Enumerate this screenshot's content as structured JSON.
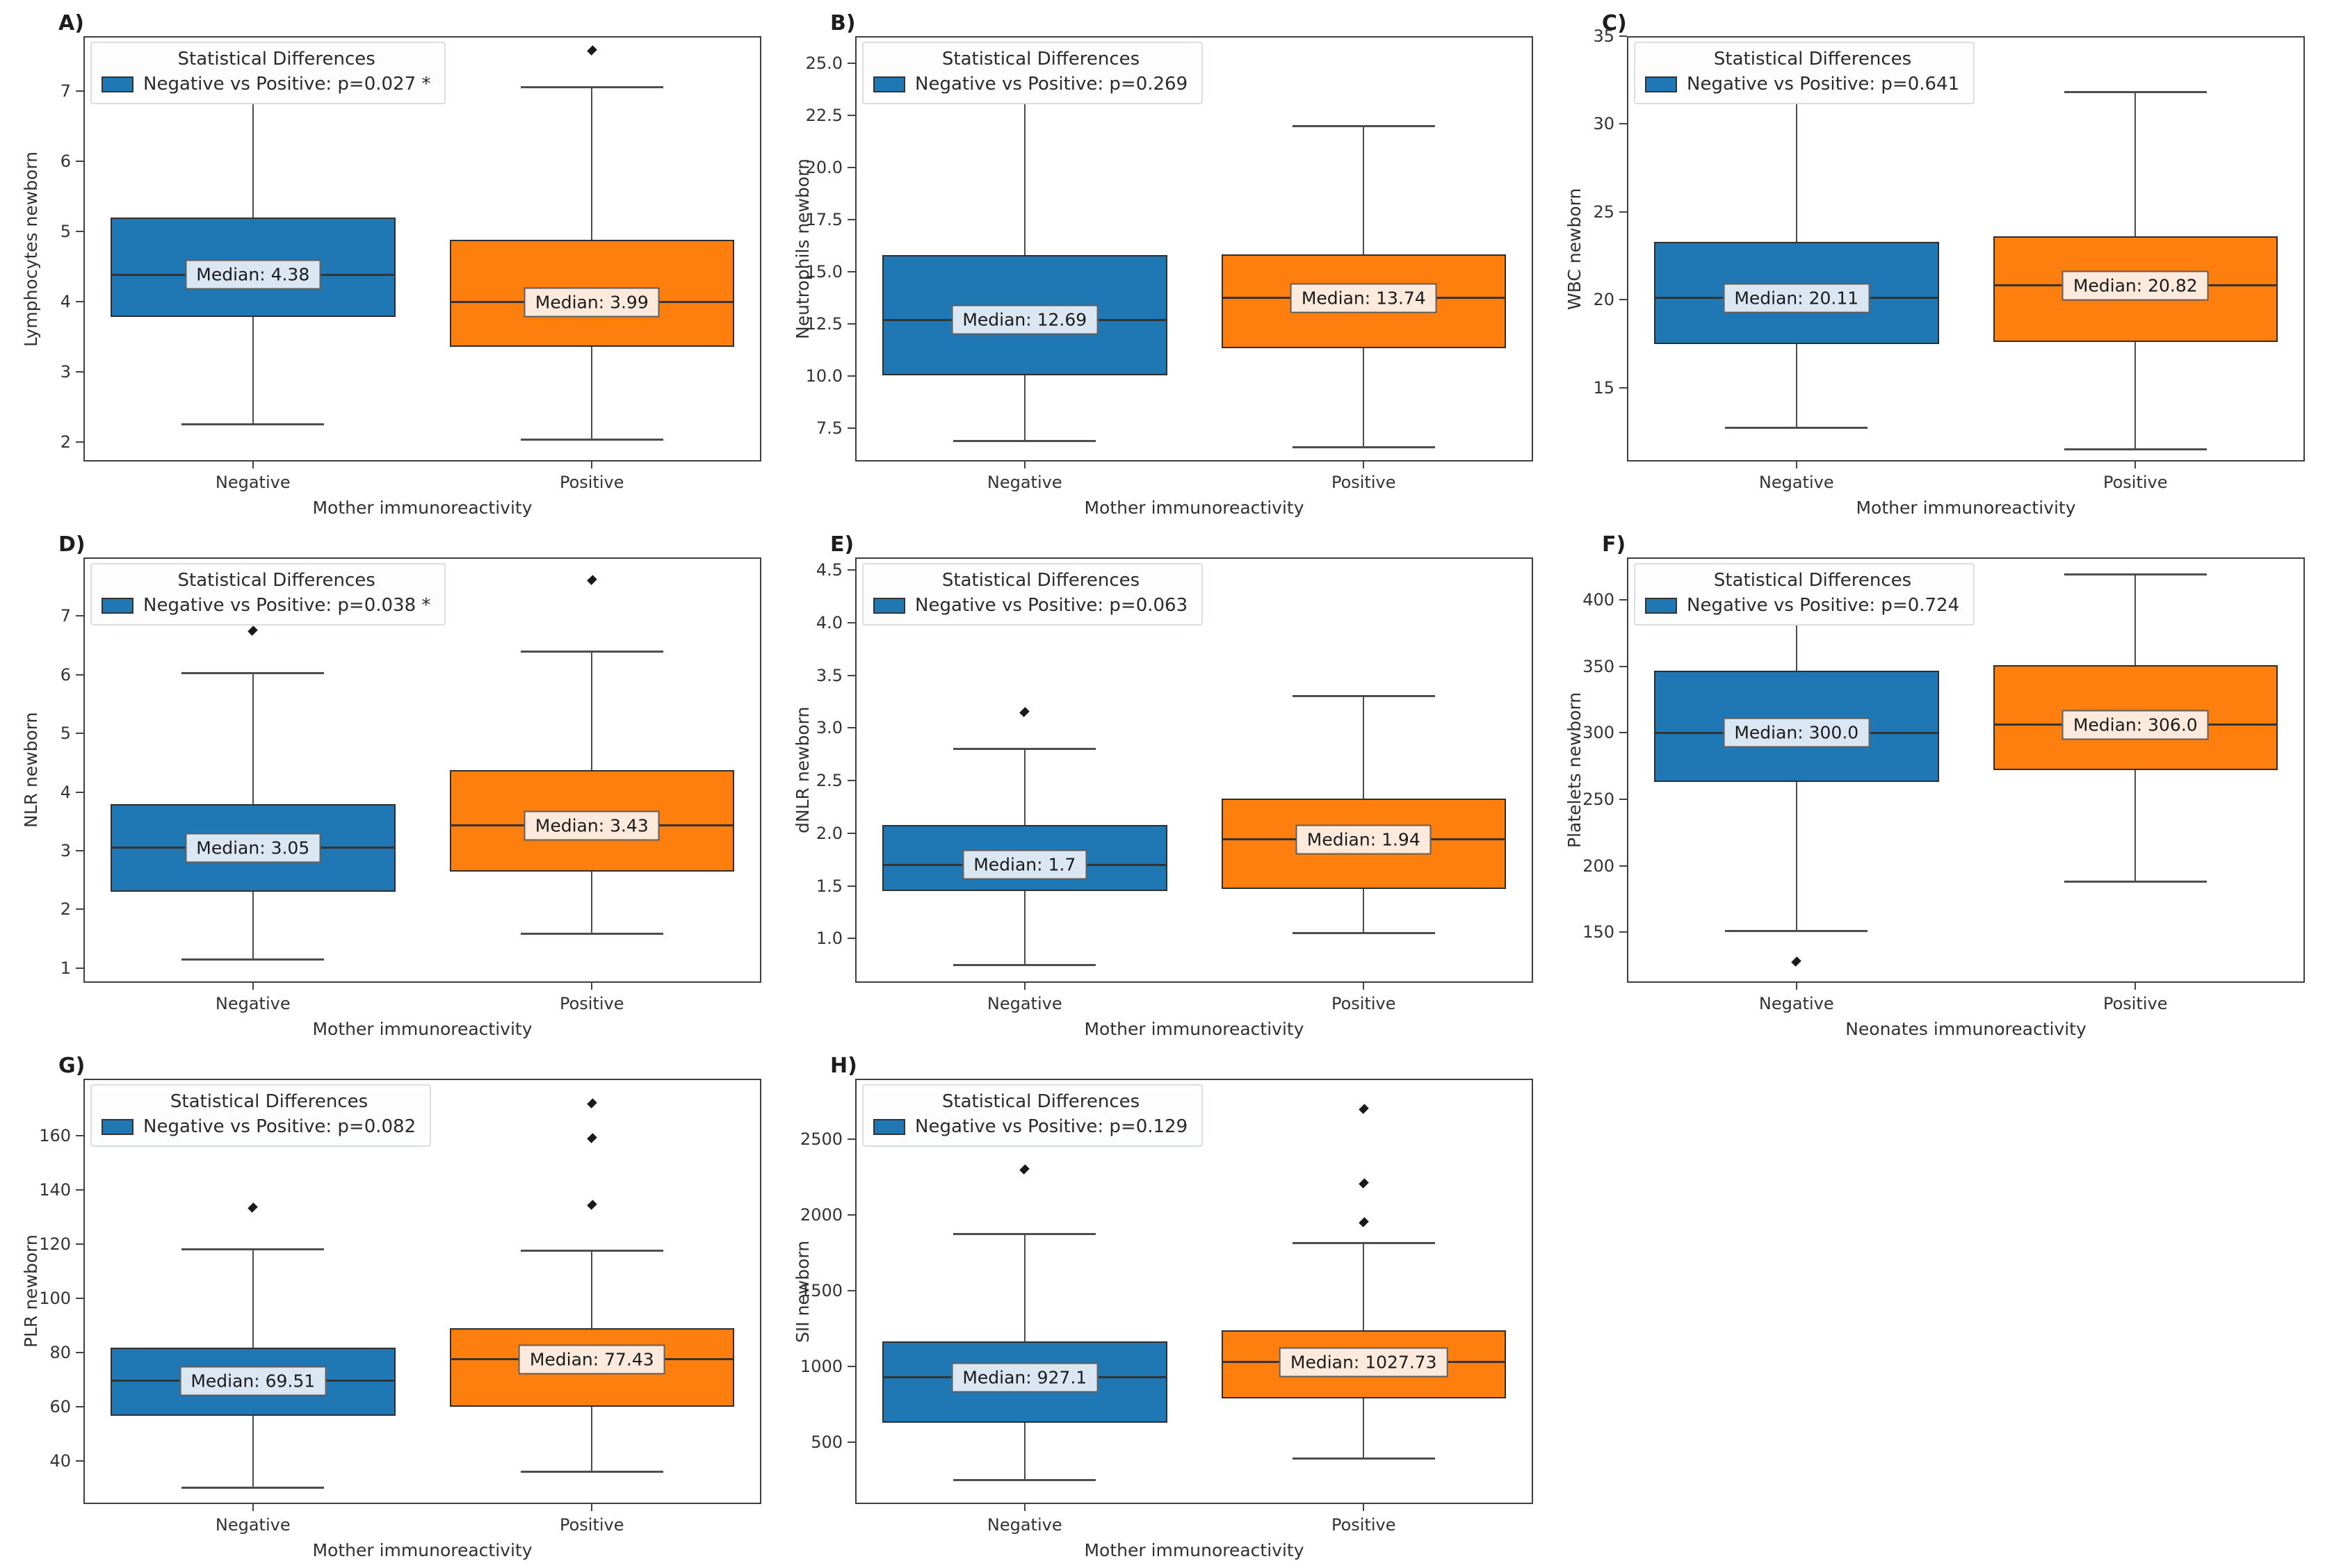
{
  "figure": {
    "legend_title": "Statistical Differences",
    "group_names": [
      "Negative",
      "Positive"
    ],
    "colors": {
      "negative_box": "#1f77b4",
      "positive_box": "#ff7f0e",
      "negative_median_label_bg": "#dbe6f3",
      "positive_median_label_bg": "#fdeadc",
      "box_edge": "#2e2e2e",
      "whisker": "#4d4d4d"
    }
  },
  "chart_data": [
    {
      "type": "box",
      "label": "A)",
      "ylabel": "Lymphocytes newborn",
      "xlabel": "Mother immunoreactivity",
      "legend": {
        "title": "Statistical Differences",
        "entry": "Negative vs Positive: p=0.027 *"
      },
      "ylim": [
        1.72,
        7.78
      ],
      "yticks": [
        {
          "v": 2,
          "t": "2"
        },
        {
          "v": 3,
          "t": "3"
        },
        {
          "v": 4,
          "t": "4"
        },
        {
          "v": 5,
          "t": "5"
        },
        {
          "v": 6,
          "t": "6"
        },
        {
          "v": 7,
          "t": "7"
        }
      ],
      "groups": [
        {
          "name": "Negative",
          "color": "#1f77b4",
          "label_bg": "#dbe6f3",
          "whisker_low": 2.25,
          "q1": 3.78,
          "median": 4.38,
          "q3": 5.2,
          "whisker_high": 7.2,
          "outliers": [],
          "median_label": "Median: 4.38"
        },
        {
          "name": "Positive",
          "color": "#ff7f0e",
          "label_bg": "#fdeadc",
          "whisker_low": 2.03,
          "q1": 3.35,
          "median": 3.99,
          "q3": 4.88,
          "whisker_high": 7.05,
          "outliers": [
            7.58
          ],
          "median_label": "Median: 3.99"
        }
      ]
    },
    {
      "type": "box",
      "label": "B)",
      "ylabel": "Neutrophils newborn",
      "xlabel": "Mother immunoreactivity",
      "legend": {
        "title": "Statistical Differences",
        "entry": "Negative vs Positive: p=0.269"
      },
      "ylim": [
        5.9,
        26.3
      ],
      "yticks": [
        {
          "v": 7.5,
          "t": "7.5"
        },
        {
          "v": 10,
          "t": "10.0"
        },
        {
          "v": 12.5,
          "t": "12.5"
        },
        {
          "v": 15,
          "t": "15.0"
        },
        {
          "v": 17.5,
          "t": "17.5"
        },
        {
          "v": 20,
          "t": "20.0"
        },
        {
          "v": 22.5,
          "t": "22.5"
        },
        {
          "v": 25,
          "t": "25.0"
        }
      ],
      "groups": [
        {
          "name": "Negative",
          "color": "#1f77b4",
          "label_bg": "#dbe6f3",
          "whisker_low": 6.9,
          "q1": 10.05,
          "median": 12.69,
          "q3": 15.8,
          "whisker_high": 23.7,
          "outliers": [],
          "median_label": "Median: 12.69"
        },
        {
          "name": "Positive",
          "color": "#ff7f0e",
          "label_bg": "#fdeadc",
          "whisker_low": 6.6,
          "q1": 11.35,
          "median": 13.74,
          "q3": 15.85,
          "whisker_high": 22.0,
          "outliers": [],
          "median_label": "Median: 13.74"
        }
      ]
    },
    {
      "type": "box",
      "label": "C)",
      "ylabel": "WBC newborn",
      "xlabel": "Mother immunoreactivity",
      "legend": {
        "title": "Statistical Differences",
        "entry": "Negative vs Positive: p=0.641"
      },
      "ylim": [
        10.8,
        35.0
      ],
      "yticks": [
        {
          "v": 15,
          "t": "15"
        },
        {
          "v": 20,
          "t": "20"
        },
        {
          "v": 25,
          "t": "25"
        },
        {
          "v": 30,
          "t": "30"
        },
        {
          "v": 35,
          "t": "35"
        }
      ],
      "groups": [
        {
          "name": "Negative",
          "color": "#1f77b4",
          "label_bg": "#dbe6f3",
          "whisker_low": 12.7,
          "q1": 17.5,
          "median": 20.11,
          "q3": 23.3,
          "whisker_high": 31.2,
          "outliers": [],
          "median_label": "Median: 20.11"
        },
        {
          "name": "Positive",
          "color": "#ff7f0e",
          "label_bg": "#fdeadc",
          "whisker_low": 11.5,
          "q1": 17.6,
          "median": 20.82,
          "q3": 23.6,
          "whisker_high": 31.8,
          "outliers": [],
          "median_label": "Median: 20.82"
        }
      ]
    },
    {
      "type": "box",
      "label": "D)",
      "ylabel": "NLR newborn",
      "xlabel": "Mother immunoreactivity",
      "legend": {
        "title": "Statistical Differences",
        "entry": "Negative vs Positive: p=0.038 *"
      },
      "ylim": [
        0.75,
        8.0
      ],
      "yticks": [
        {
          "v": 1,
          "t": "1"
        },
        {
          "v": 2,
          "t": "2"
        },
        {
          "v": 3,
          "t": "3"
        },
        {
          "v": 4,
          "t": "4"
        },
        {
          "v": 5,
          "t": "5"
        },
        {
          "v": 6,
          "t": "6"
        },
        {
          "v": 7,
          "t": "7"
        }
      ],
      "groups": [
        {
          "name": "Negative",
          "color": "#1f77b4",
          "label_bg": "#dbe6f3",
          "whisker_low": 1.15,
          "q1": 2.3,
          "median": 3.05,
          "q3": 3.8,
          "whisker_high": 6.03,
          "outliers": [
            6.75
          ],
          "median_label": "Median: 3.05"
        },
        {
          "name": "Positive",
          "color": "#ff7f0e",
          "label_bg": "#fdeadc",
          "whisker_low": 1.58,
          "q1": 2.65,
          "median": 3.43,
          "q3": 4.37,
          "whisker_high": 6.4,
          "outliers": [
            7.62
          ],
          "median_label": "Median: 3.43"
        }
      ]
    },
    {
      "type": "box",
      "label": "E)",
      "ylabel": "dNLR newborn",
      "xlabel": "Mother immunoreactivity",
      "legend": {
        "title": "Statistical Differences",
        "entry": "Negative vs Positive: p=0.063"
      },
      "ylim": [
        0.58,
        4.62
      ],
      "yticks": [
        {
          "v": 1,
          "t": "1.0"
        },
        {
          "v": 1.5,
          "t": "1.5"
        },
        {
          "v": 2,
          "t": "2.0"
        },
        {
          "v": 2.5,
          "t": "2.5"
        },
        {
          "v": 3,
          "t": "3.0"
        },
        {
          "v": 3.5,
          "t": "3.5"
        },
        {
          "v": 4,
          "t": "4.0"
        },
        {
          "v": 4.5,
          "t": "4.5"
        }
      ],
      "groups": [
        {
          "name": "Negative",
          "color": "#1f77b4",
          "label_bg": "#dbe6f3",
          "whisker_low": 0.75,
          "q1": 1.45,
          "median": 1.7,
          "q3": 2.08,
          "whisker_high": 2.8,
          "outliers": [
            3.15
          ],
          "median_label": "Median: 1.7"
        },
        {
          "name": "Positive",
          "color": "#ff7f0e",
          "label_bg": "#fdeadc",
          "whisker_low": 1.05,
          "q1": 1.47,
          "median": 1.94,
          "q3": 2.33,
          "whisker_high": 3.3,
          "outliers": [],
          "median_label": "Median: 1.94"
        }
      ]
    },
    {
      "type": "box",
      "label": "F)",
      "ylabel": "Platelets newborn",
      "xlabel": "Neonates immunoreactivity",
      "legend": {
        "title": "Statistical Differences",
        "entry": "Negative vs Positive: p=0.724"
      },
      "ylim": [
        112,
        432
      ],
      "yticks": [
        {
          "v": 150,
          "t": "150"
        },
        {
          "v": 200,
          "t": "200"
        },
        {
          "v": 250,
          "t": "250"
        },
        {
          "v": 300,
          "t": "300"
        },
        {
          "v": 350,
          "t": "350"
        },
        {
          "v": 400,
          "t": "400"
        }
      ],
      "groups": [
        {
          "name": "Negative",
          "color": "#1f77b4",
          "label_bg": "#dbe6f3",
          "whisker_low": 151,
          "q1": 263,
          "median": 300.0,
          "q3": 347,
          "whisker_high": 401,
          "outliers": [
            128
          ],
          "median_label": "Median: 300.0"
        },
        {
          "name": "Positive",
          "color": "#ff7f0e",
          "label_bg": "#fdeadc",
          "whisker_low": 188,
          "q1": 272,
          "median": 306.0,
          "q3": 351,
          "whisker_high": 419,
          "outliers": [],
          "median_label": "Median: 306.0"
        }
      ]
    },
    {
      "type": "box",
      "label": "G)",
      "ylabel": "PLR newborn",
      "xlabel": "Mother immunoreactivity",
      "legend": {
        "title": "Statistical Differences",
        "entry": "Negative vs Positive: p=0.082"
      },
      "ylim": [
        24,
        181
      ],
      "yticks": [
        {
          "v": 40,
          "t": "40"
        },
        {
          "v": 60,
          "t": "60"
        },
        {
          "v": 80,
          "t": "80"
        },
        {
          "v": 100,
          "t": "100"
        },
        {
          "v": 120,
          "t": "120"
        },
        {
          "v": 140,
          "t": "140"
        },
        {
          "v": 160,
          "t": "160"
        }
      ],
      "groups": [
        {
          "name": "Negative",
          "color": "#1f77b4",
          "label_bg": "#dbe6f3",
          "whisker_low": 30,
          "q1": 56.5,
          "median": 69.51,
          "q3": 81.7,
          "whisker_high": 118,
          "outliers": [
            133.5
          ],
          "median_label": "Median: 69.51"
        },
        {
          "name": "Positive",
          "color": "#ff7f0e",
          "label_bg": "#fdeadc",
          "whisker_low": 36,
          "q1": 60,
          "median": 77.43,
          "q3": 89,
          "whisker_high": 117.5,
          "outliers": [
            134.5,
            159,
            172
          ],
          "median_label": "Median: 77.43"
        }
      ]
    },
    {
      "type": "box",
      "label": "H)",
      "ylabel": "SII newborn",
      "xlabel": "Mother immunoreactivity",
      "legend": {
        "title": "Statistical Differences",
        "entry": "Negative vs Positive: p=0.129"
      },
      "ylim": [
        90,
        2900
      ],
      "yticks": [
        {
          "v": 500,
          "t": "500"
        },
        {
          "v": 1000,
          "t": "1000"
        },
        {
          "v": 1500,
          "t": "1500"
        },
        {
          "v": 2000,
          "t": "2000"
        },
        {
          "v": 2500,
          "t": "2500"
        }
      ],
      "groups": [
        {
          "name": "Negative",
          "color": "#1f77b4",
          "label_bg": "#dbe6f3",
          "whisker_low": 250,
          "q1": 625,
          "median": 927.1,
          "q3": 1165,
          "whisker_high": 1875,
          "outliers": [
            2300
          ],
          "median_label": "Median: 927.1"
        },
        {
          "name": "Positive",
          "color": "#ff7f0e",
          "label_bg": "#fdeadc",
          "whisker_low": 390,
          "q1": 790,
          "median": 1027.73,
          "q3": 1240,
          "whisker_high": 1815,
          "outliers": [
            1950,
            2210,
            2700
          ],
          "median_label": "Median: 1027.73"
        }
      ]
    }
  ]
}
